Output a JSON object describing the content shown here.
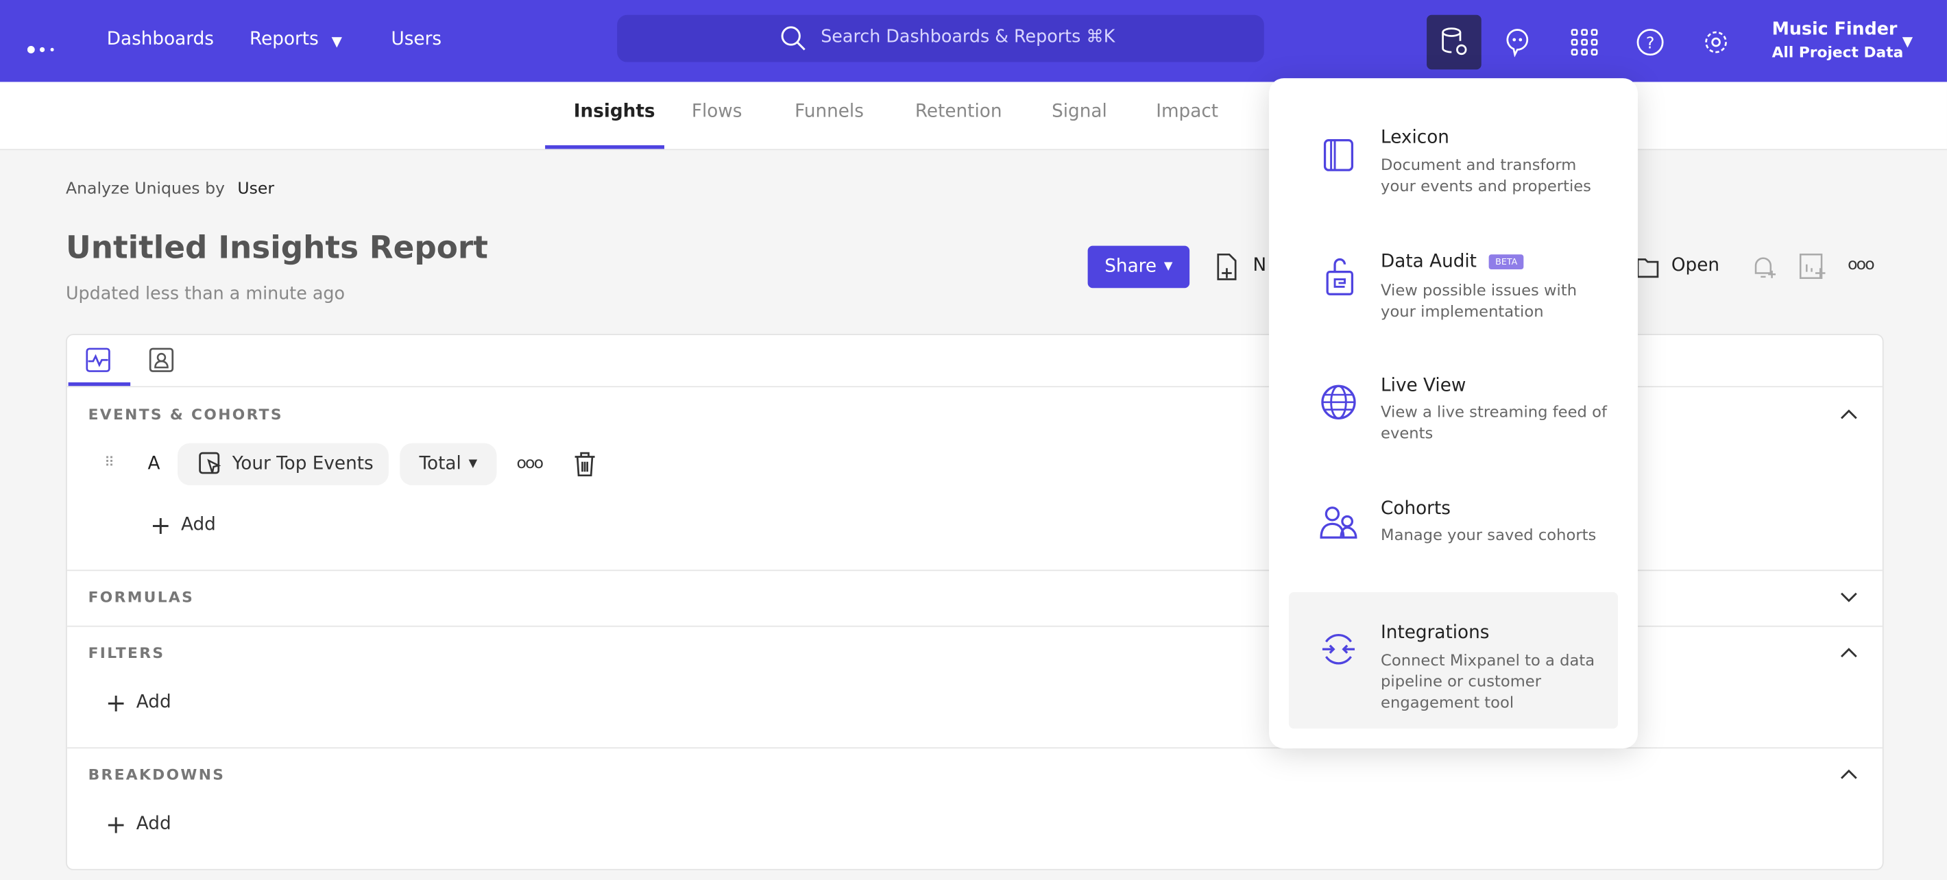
{
  "header": {
    "nav": [
      "Dashboards",
      "Reports",
      "Users"
    ],
    "search_placeholder": "Search Dashboards & Reports ⌘K",
    "project_name": "Music Finder",
    "project_scope": "All Project Data",
    "accent": "#4f44e0"
  },
  "tabs": [
    "Insights",
    "Flows",
    "Funnels",
    "Retention",
    "Signal",
    "Impact"
  ],
  "active_tab": "Insights",
  "report": {
    "analyze_label": "Analyze Uniques by",
    "analyze_value": "User",
    "title": "Untitled Insights Report",
    "updated": "Updated less than a minute ago",
    "share": "Share",
    "new": "N",
    "open": "Open"
  },
  "sections": {
    "events": "EVENTS & COHORTS",
    "formulas": "FORMULAS",
    "filters": "FILTERS",
    "breakdowns": "BREAKDOWNS"
  },
  "event_row": {
    "letter": "A",
    "event": "Your Top Events",
    "measure": "Total"
  },
  "add_label": "Add",
  "menu": [
    {
      "title": "Lexicon",
      "desc": "Document and transform your events and properties"
    },
    {
      "title": "Data Audit",
      "badge": "BETA",
      "desc": "View possible issues with your implementation"
    },
    {
      "title": "Live View",
      "desc": "View a live streaming feed of events"
    },
    {
      "title": "Cohorts",
      "desc": "Manage your saved cohorts"
    },
    {
      "title": "Integrations",
      "desc": "Connect Mixpanel to a data pipeline or customer engagement tool"
    }
  ]
}
